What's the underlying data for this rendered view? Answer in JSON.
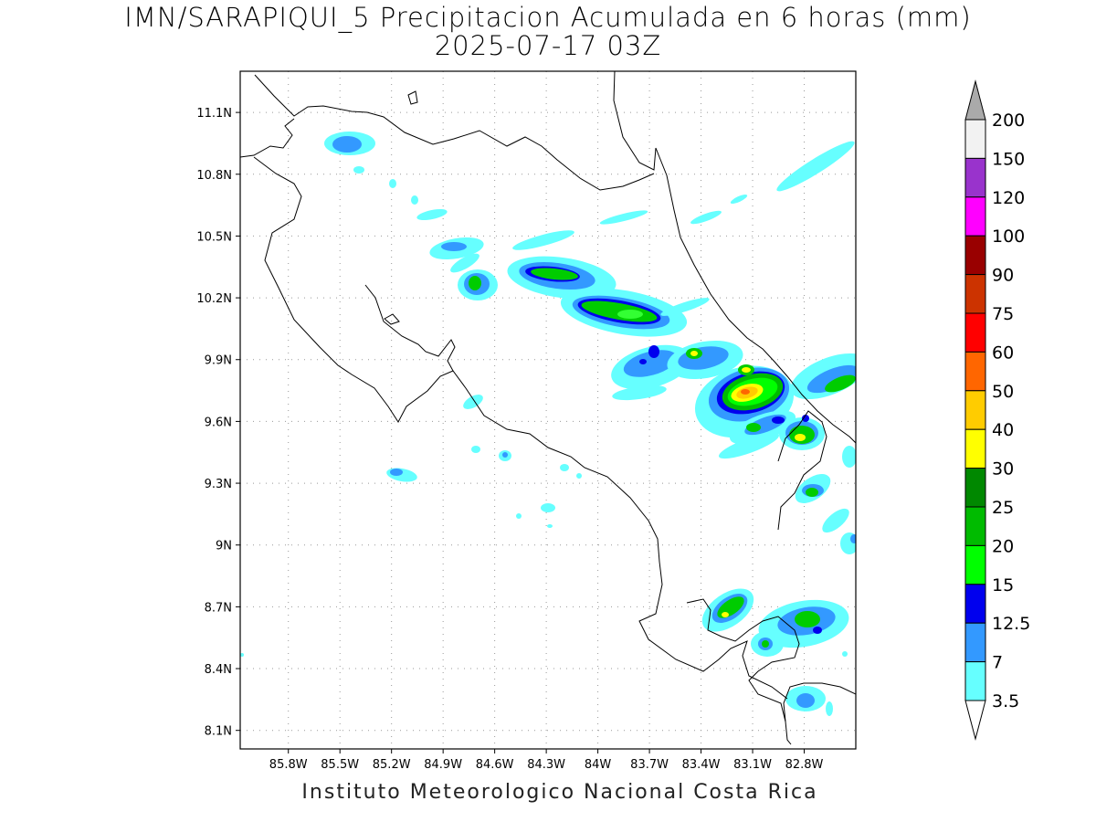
{
  "title": {
    "line1": "IMN/SARAPIQUI_5 Precipitacion Acumulada en 6 horas (mm)",
    "line2": "2025-07-17 03Z"
  },
  "footer": "Instituto Meteorologico Nacional Costa Rica",
  "map": {
    "lon_range": [
      -86.08,
      -82.5
    ],
    "lat_range": [
      8.01,
      11.3
    ],
    "lat_ticks": [
      {
        "value": 11.1,
        "label": "11.1N"
      },
      {
        "value": 10.8,
        "label": "10.8N"
      },
      {
        "value": 10.5,
        "label": "10.5N"
      },
      {
        "value": 10.2,
        "label": "10.2N"
      },
      {
        "value": 9.9,
        "label": "9.9N"
      },
      {
        "value": 9.6,
        "label": "9.6N"
      },
      {
        "value": 9.3,
        "label": "9.3N"
      },
      {
        "value": 9.0,
        "label": "9N"
      },
      {
        "value": 8.7,
        "label": "8.7N"
      },
      {
        "value": 8.4,
        "label": "8.4N"
      },
      {
        "value": 8.1,
        "label": "8.1N"
      }
    ],
    "lon_ticks": [
      {
        "value": -85.8,
        "label": "85.8W"
      },
      {
        "value": -85.5,
        "label": "85.5W"
      },
      {
        "value": -85.2,
        "label": "85.2W"
      },
      {
        "value": -84.9,
        "label": "84.9W"
      },
      {
        "value": -84.6,
        "label": "84.6W"
      },
      {
        "value": -84.3,
        "label": "84.3W"
      },
      {
        "value": -84.0,
        "label": "84W"
      },
      {
        "value": -83.7,
        "label": "83.7W"
      },
      {
        "value": -83.4,
        "label": "83.4W"
      },
      {
        "value": -83.1,
        "label": "83.1W"
      },
      {
        "value": -82.8,
        "label": "82.8W"
      }
    ],
    "grid": "dotted"
  },
  "colorbar": {
    "levels": [
      {
        "label": "200",
        "color": "#f2f2f2"
      },
      {
        "label": "150",
        "color": "#9933cc"
      },
      {
        "label": "120",
        "color": "#ff00ff"
      },
      {
        "label": "100",
        "color": "#990000"
      },
      {
        "label": "90",
        "color": "#cc3300"
      },
      {
        "label": "75",
        "color": "#ff0000"
      },
      {
        "label": "60",
        "color": "#ff6600"
      },
      {
        "label": "50",
        "color": "#ffcc00"
      },
      {
        "label": "40",
        "color": "#ffff00"
      },
      {
        "label": "30",
        "color": "#008800"
      },
      {
        "label": "25",
        "color": "#00bb00"
      },
      {
        "label": "20",
        "color": "#00ff00"
      },
      {
        "label": "15",
        "color": "#0000ee"
      },
      {
        "label": "12.5",
        "color": "#3399ff"
      },
      {
        "label": "7",
        "color": "#66ffff"
      },
      {
        "label": "3.5",
        "color": "#ffffff"
      }
    ],
    "over_color": "#aaaaaa",
    "under_color": "#ffffff"
  },
  "precip_areas": [
    {
      "lon": -85.11,
      "lat": 10.98,
      "level": "7"
    },
    {
      "lon": -84.3,
      "lat": 10.32,
      "level": "15"
    },
    {
      "lon": -84.0,
      "lat": 10.12,
      "level": "20"
    },
    {
      "lon": -83.1,
      "lat": 9.74,
      "level": "40"
    },
    {
      "lon": -82.81,
      "lat": 9.52,
      "level": "40"
    },
    {
      "lon": -83.23,
      "lat": 8.65,
      "level": "40"
    },
    {
      "lon": -82.75,
      "lat": 8.6,
      "level": "20"
    }
  ]
}
